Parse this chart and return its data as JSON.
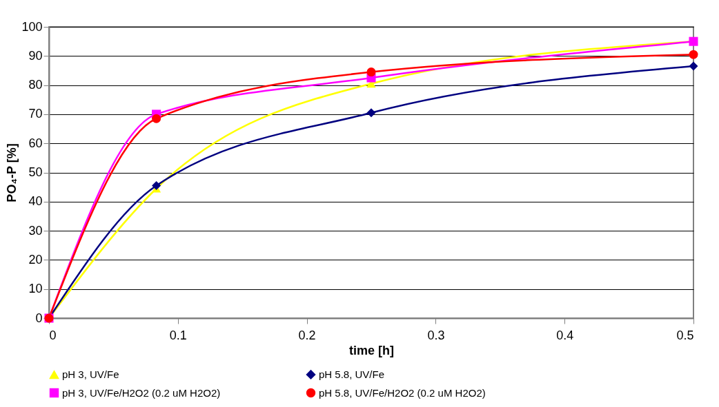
{
  "chart_data": {
    "type": "line",
    "xlabel": "time [h]",
    "ylabel": "PO₄-P [%]",
    "x": [
      0,
      0.0833,
      0.25,
      0.5
    ],
    "xlim": [
      0,
      0.5
    ],
    "xticks": [
      0,
      0.1,
      0.2,
      0.3,
      0.4,
      0.5
    ],
    "ylim": [
      0,
      100
    ],
    "yticks": [
      0,
      10,
      20,
      30,
      40,
      50,
      60,
      70,
      80,
      90,
      100
    ],
    "grid": "y",
    "legend": "bottom",
    "line_style": "solid",
    "series": [
      {
        "name": "pH 3, UV/Fe",
        "color": "#ffff00",
        "marker": "triangle",
        "values": [
          0,
          44.5,
          80.5,
          95
        ]
      },
      {
        "name": "pH 5.8, UV/Fe",
        "color": "#000080",
        "marker": "diamond",
        "values": [
          0,
          45.5,
          70.5,
          86.5
        ]
      },
      {
        "name": "pH 3, UV/Fe/H2O2 (0.2 uM H2O2)",
        "color": "#ff00ff",
        "marker": "square",
        "values": [
          0,
          70,
          82.5,
          95
        ]
      },
      {
        "name": "pH 5.8, UV/Fe/H2O2 (0.2 uM H2O2)",
        "color": "#ff0000",
        "marker": "circle",
        "values": [
          0,
          68.5,
          84.5,
          90.5
        ]
      }
    ]
  }
}
